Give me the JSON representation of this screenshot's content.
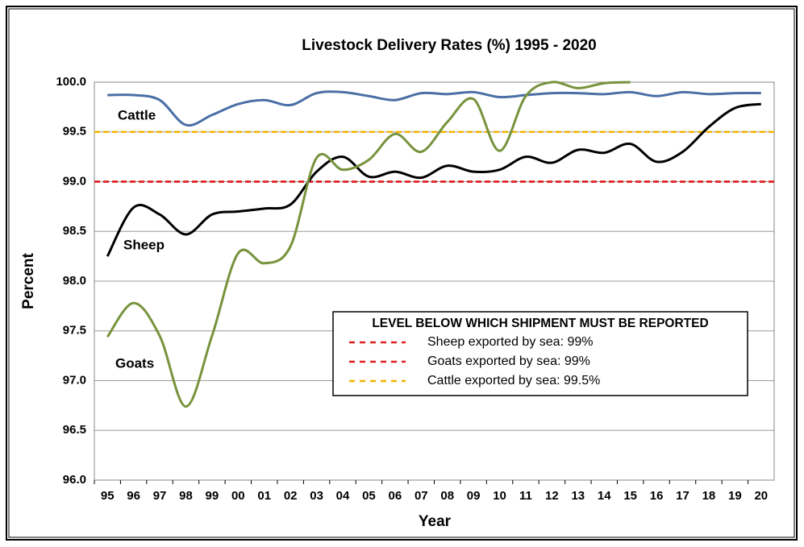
{
  "chart_data": {
    "type": "line",
    "title": "Livestock Delivery Rates (%) 1995 - 2020",
    "x_label": "Year",
    "y_label": "Percent",
    "categories": [
      "95",
      "96",
      "97",
      "98",
      "99",
      "00",
      "01",
      "02",
      "03",
      "04",
      "05",
      "06",
      "07",
      "08",
      "09",
      "10",
      "11",
      "12",
      "13",
      "14",
      "15",
      "16",
      "17",
      "18",
      "19",
      "20"
    ],
    "series": [
      {
        "name": "Cattle",
        "color": "#4a6fa5",
        "values": [
          99.87,
          99.87,
          99.82,
          99.57,
          99.67,
          99.78,
          99.82,
          99.77,
          99.89,
          99.9,
          99.86,
          99.82,
          99.89,
          99.88,
          99.9,
          99.85,
          99.87,
          99.89,
          99.89,
          99.88,
          99.9,
          99.86,
          99.9,
          99.88,
          99.89,
          99.89
        ]
      },
      {
        "name": "Sheep",
        "color": "#000000",
        "values": [
          98.25,
          98.74,
          98.67,
          98.47,
          98.67,
          98.7,
          98.73,
          98.77,
          99.1,
          99.25,
          99.05,
          99.1,
          99.04,
          99.16,
          99.1,
          99.12,
          99.25,
          99.19,
          99.32,
          99.29,
          99.38,
          99.2,
          99.3,
          99.55,
          99.74,
          99.78
        ]
      },
      {
        "name": "Goats",
        "color": "#77933c",
        "values": [
          97.44,
          97.78,
          97.45,
          96.74,
          97.45,
          98.28,
          98.18,
          98.35,
          99.24,
          99.12,
          99.22,
          99.48,
          99.3,
          99.6,
          99.83,
          99.31,
          99.86,
          100.0,
          99.94,
          99.99,
          100.0,
          null,
          null,
          null,
          null,
          null
        ]
      }
    ],
    "legend_title": "LEVEL BELOW WHICH SHIPMENT MUST BE REPORTED",
    "reference_lines": [
      {
        "name": "Sheep exported by sea: 99%",
        "value": 99,
        "color": "#e02020"
      },
      {
        "name": "Goats exported by sea: 99%",
        "value": 99,
        "color": "#e02020"
      },
      {
        "name": "Cattle exported by sea: 99.5%",
        "value": 99.5,
        "color": "#f0b400"
      }
    ],
    "ylim": [
      96,
      100
    ],
    "yticks": [
      {
        "value": 96,
        "label": "96.0"
      },
      {
        "value": 96.5,
        "label": "96.5"
      },
      {
        "value": 97,
        "label": "97.0"
      },
      {
        "value": 97.5,
        "label": "97.5"
      },
      {
        "value": 98,
        "label": "98.0"
      },
      {
        "value": 98.5,
        "label": "98.5"
      },
      {
        "value": 99,
        "label": "99.0"
      },
      {
        "value": 99.5,
        "label": "99.5"
      },
      {
        "value": 100,
        "label": "100.0"
      }
    ],
    "grid": true
  }
}
